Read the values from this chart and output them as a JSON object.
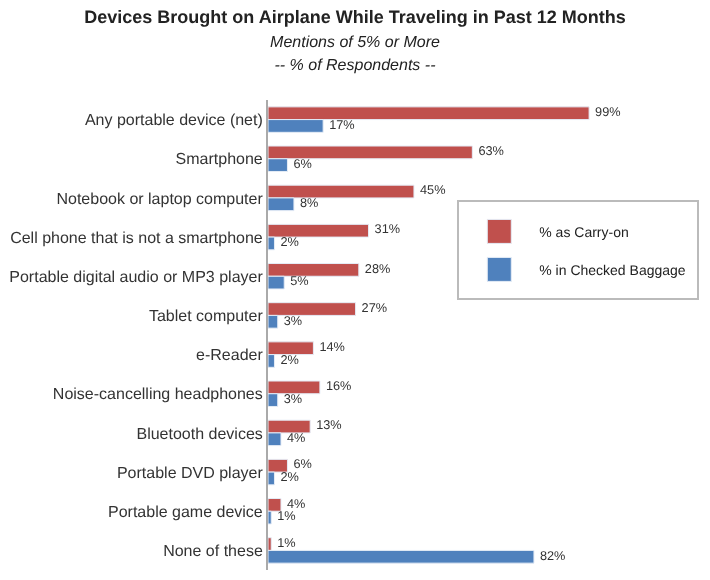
{
  "chart_data": {
    "type": "bar",
    "orientation": "horizontal",
    "title": "Devices Brought on Airplane While Traveling in Past 12 Months",
    "subtitle": "Mentions of 5% or More",
    "annotations": [
      "-- % of Respondents --"
    ],
    "categories": [
      "Any portable device (net)",
      "Smartphone",
      "Notebook or laptop computer",
      "Cell phone that is not a smartphone",
      "Portable digital audio or MP3 player",
      "Tablet computer",
      "e-Reader",
      "Noise-cancelling headphones",
      "Bluetooth devices",
      "Portable DVD player",
      "Portable game device",
      "None of these"
    ],
    "series": [
      {
        "name": "% as Carry-on",
        "color": "#c0504d",
        "values": [
          99,
          63,
          45,
          31,
          28,
          27,
          14,
          16,
          13,
          6,
          4,
          1
        ],
        "value_labels": [
          "99%",
          "63%",
          "45%",
          "31%",
          "28%",
          "27%",
          "14%",
          "16%",
          "13%",
          "6%",
          "4%",
          "1%"
        ]
      },
      {
        "name": "% in Checked Baggage",
        "color": "#4f81bd",
        "values": [
          17,
          6,
          8,
          2,
          5,
          3,
          2,
          3,
          4,
          2,
          1,
          82
        ],
        "value_labels": [
          "17%",
          "6%",
          "8%",
          "2%",
          "5%",
          "3%",
          "2%",
          "3%",
          "4%",
          "2%",
          "1%",
          "82%"
        ]
      }
    ],
    "legend": "right"
  }
}
